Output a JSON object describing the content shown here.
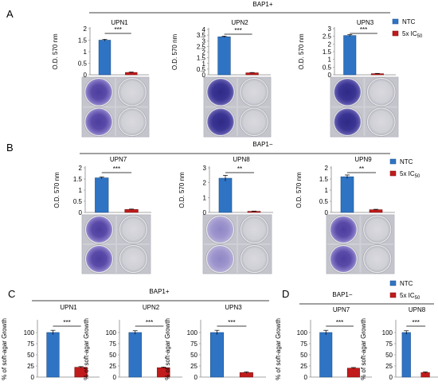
{
  "panels": {
    "A": {
      "label": "A",
      "header": "BAP1+"
    },
    "B": {
      "label": "B",
      "header": "BAP1−"
    },
    "C": {
      "label": "C",
      "header": "BAP1+"
    },
    "D": {
      "label": "D",
      "header": "BAP1−"
    }
  },
  "legend": {
    "ntc": "NTC",
    "ic50_prefix": "5x IC",
    "ic50_sub": "50",
    "colors": {
      "ntc": "#2f74c4",
      "ic50": "#c11b1b"
    }
  },
  "colors": {
    "ntc": "#2f74c4",
    "ic50": "#c11b1b",
    "axis": "#888888",
    "border": "#000000"
  },
  "chart_data": [
    {
      "id": "A-UPN1",
      "panel": "A",
      "type": "bar",
      "title": "UPN1",
      "ylabel": "O.D. 570 nm",
      "categories": [
        "NTC",
        "5x IC50"
      ],
      "values": [
        1.5,
        0.1
      ],
      "errors": [
        0.04,
        0.02
      ],
      "ylim": [
        0,
        2
      ],
      "yticks": [
        "0",
        "0.5",
        "1",
        "1.5",
        "2"
      ],
      "significance": "***"
    },
    {
      "id": "A-UPN2",
      "panel": "A",
      "type": "bar",
      "title": "UPN2",
      "ylabel": "O.D. 570 nm",
      "categories": [
        "NTC",
        "5x IC50"
      ],
      "values": [
        3.35,
        0.17
      ],
      "errors": [
        0.06,
        0.03
      ],
      "ylim": [
        0,
        4
      ],
      "yticks": [
        "0",
        "0.5",
        "1",
        "1.5",
        "2",
        "2.5",
        "3",
        "3.5",
        "4"
      ],
      "significance": "***"
    },
    {
      "id": "A-UPN3",
      "panel": "A",
      "type": "bar",
      "title": "UPN3",
      "ylabel": "O.D. 570 nm",
      "categories": [
        "NTC",
        "5x IC50"
      ],
      "values": [
        2.55,
        0.07
      ],
      "errors": [
        0.06,
        0.02
      ],
      "ylim": [
        0,
        3
      ],
      "yticks": [
        "0",
        "0.5",
        "1",
        "1.5",
        "2",
        "2.5",
        "3"
      ],
      "significance": "***"
    },
    {
      "id": "B-UPN7",
      "panel": "B",
      "type": "bar",
      "title": "UPN7",
      "ylabel": "O.D. 570 nm",
      "categories": [
        "NTC",
        "5x IC50"
      ],
      "values": [
        1.55,
        0.13
      ],
      "errors": [
        0.04,
        0.02
      ],
      "ylim": [
        0,
        2
      ],
      "yticks": [
        "0",
        "0.5",
        "1",
        "1.5",
        "2"
      ],
      "significance": "***"
    },
    {
      "id": "B-UPN8",
      "panel": "B",
      "type": "bar",
      "title": "UPN8",
      "ylabel": "O.D. 570 nm",
      "categories": [
        "NTC",
        "5x IC50"
      ],
      "values": [
        2.3,
        0.07
      ],
      "errors": [
        0.2,
        0.02
      ],
      "ylim": [
        0,
        3
      ],
      "yticks": [
        "0",
        "1",
        "2",
        "3"
      ],
      "significance": "**"
    },
    {
      "id": "B-UPN9",
      "panel": "B",
      "type": "bar",
      "title": "UPN9",
      "ylabel": "O.D. 570 nm",
      "categories": [
        "NTC",
        "5x IC50"
      ],
      "values": [
        1.6,
        0.12
      ],
      "errors": [
        0.08,
        0.02
      ],
      "ylim": [
        0,
        2
      ],
      "yticks": [
        "0",
        "0.5",
        "1",
        "1.5",
        "2"
      ],
      "significance": "**"
    },
    {
      "id": "C-UPN1",
      "panel": "C",
      "type": "bar",
      "title": "UPN1",
      "ylabel": "% of soft-agar Growth",
      "categories": [
        "NTC",
        "5x IC50"
      ],
      "values": [
        100,
        22
      ],
      "errors": [
        5,
        1.5
      ],
      "ylim": [
        0,
        125
      ],
      "yticks": [
        "0",
        "25",
        "50",
        "75",
        "100"
      ],
      "significance": "***"
    },
    {
      "id": "C-UPN2",
      "panel": "C",
      "type": "bar",
      "title": "UPN2",
      "ylabel": "% of soft-agar Growth",
      "categories": [
        "NTC",
        "5x IC50"
      ],
      "values": [
        100,
        21
      ],
      "errors": [
        4,
        1.5
      ],
      "ylim": [
        0,
        125
      ],
      "yticks": [
        "0",
        "25",
        "50",
        "75",
        "100"
      ],
      "significance": "***"
    },
    {
      "id": "C-UPN3",
      "panel": "C",
      "type": "bar",
      "title": "UPN3",
      "ylabel": "% of soft-agar Growth",
      "categories": [
        "NTC",
        "5x IC50"
      ],
      "values": [
        100,
        10
      ],
      "errors": [
        5,
        1.5
      ],
      "ylim": [
        0,
        125
      ],
      "yticks": [
        "0",
        "25",
        "50",
        "75",
        "100"
      ],
      "significance": "***"
    },
    {
      "id": "D-UPN7",
      "panel": "D",
      "type": "bar",
      "title": "UPN7",
      "ylabel": "% of soft-agar Growth",
      "categories": [
        "NTC",
        "5x IC50"
      ],
      "values": [
        100,
        20
      ],
      "errors": [
        5,
        1.5
      ],
      "ylim": [
        0,
        125
      ],
      "yticks": [
        "0",
        "25",
        "50",
        "75",
        "100"
      ],
      "significance": "***"
    },
    {
      "id": "D-UPN8",
      "panel": "D",
      "type": "bar",
      "title": "UPN8",
      "ylabel": "% of soft-agar Growth",
      "categories": [
        "NTC",
        "5x IC50"
      ],
      "values": [
        100,
        10
      ],
      "errors": [
        4,
        1.5
      ],
      "ylim": [
        0,
        125
      ],
      "yticks": [
        "0",
        "25",
        "50",
        "75",
        "100"
      ],
      "significance": "***"
    }
  ]
}
